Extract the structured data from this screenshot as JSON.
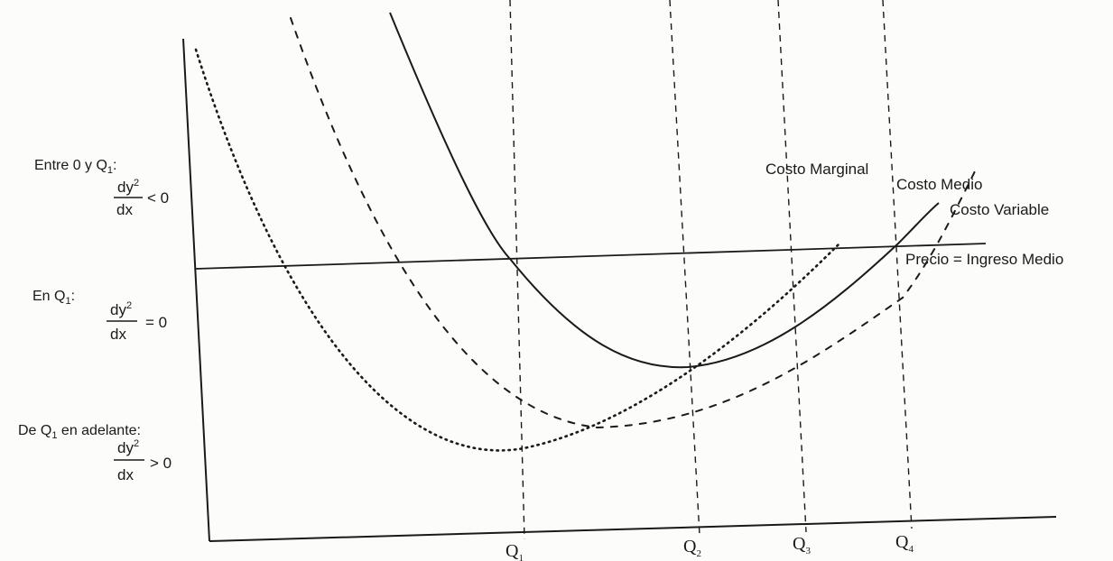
{
  "diagram": {
    "curves": {
      "marginal_cost": "Costo Marginal",
      "average_cost": "Costo Medio",
      "variable_cost": "Costo Variable",
      "price_line": "Precio = Ingreso Medio"
    },
    "x_ticks": [
      "Q",
      "Q",
      "Q",
      "Q"
    ],
    "x_tick_subscripts": [
      "1",
      "2",
      "3",
      "4"
    ],
    "conditions": [
      {
        "heading": "Entre 0 y Q",
        "heading_sub": "1",
        "heading_suffix": ":",
        "numerator": "dy",
        "exponent": "2",
        "denominator": "dx",
        "relation": "< 0"
      },
      {
        "heading": "En Q",
        "heading_sub": "1",
        "heading_suffix": ":",
        "numerator": "dy",
        "exponent": "2",
        "denominator": "dx",
        "relation": "= 0"
      },
      {
        "heading": "De Q",
        "heading_sub": "1",
        "heading_suffix": " en adelante:",
        "numerator": "dy",
        "exponent": "2",
        "denominator": "dx",
        "relation": "> 0"
      }
    ],
    "colors": {
      "ink": "#1a1a1a",
      "background": "#fcfcfa"
    }
  }
}
